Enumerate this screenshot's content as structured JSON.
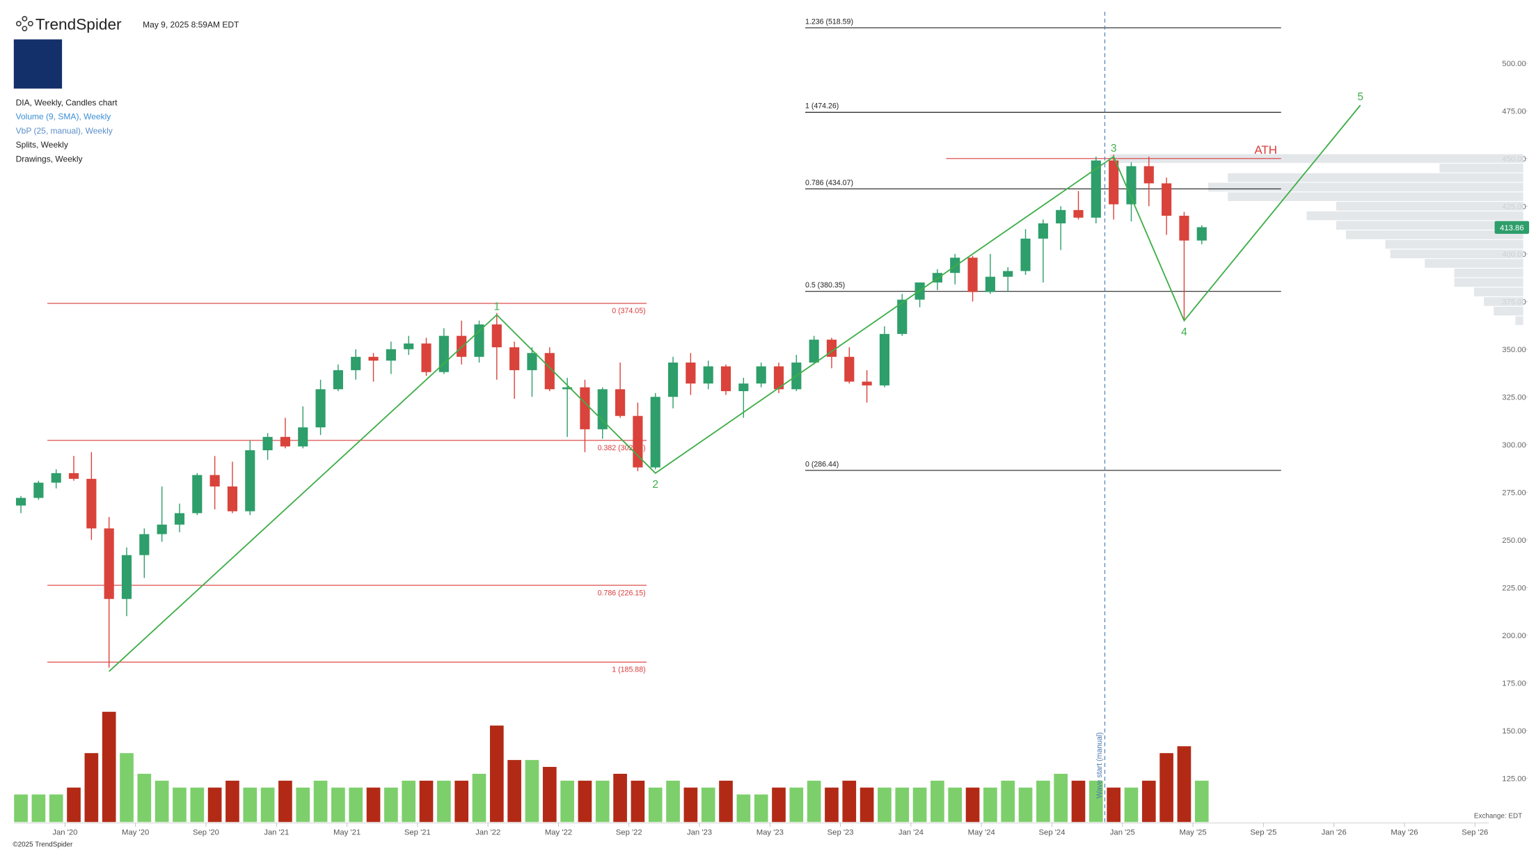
{
  "header": {
    "brand": "TrendSpider",
    "timestamp": "May 9, 2025 8:59AM EDT",
    "legend": [
      {
        "text": "DIA, Weekly, Candles chart",
        "color": "#222222"
      },
      {
        "text": "Volume (9, SMA), Weekly",
        "color": "#3a8fd6"
      },
      {
        "text": "VbP (25, manual), Weekly",
        "color": "#5b8ec9"
      },
      {
        "text": "Splits, Weekly",
        "color": "#222222"
      },
      {
        "text": "Drawings, Weekly",
        "color": "#222222"
      }
    ],
    "exchange": "Exchange: EDT",
    "copyright": "©2025 TrendSpider"
  },
  "chart_data": {
    "type": "candlestick",
    "x": [
      "2019-10",
      "2019-11",
      "2019-12",
      "2020-01",
      "2020-02",
      "2020-03",
      "2020-04",
      "2020-05",
      "2020-06",
      "2020-07",
      "2020-08",
      "2020-09",
      "2020-10",
      "2020-11",
      "2020-12",
      "2021-01",
      "2021-02",
      "2021-03",
      "2021-04",
      "2021-05",
      "2021-06",
      "2021-07",
      "2021-08",
      "2021-09",
      "2021-10",
      "2021-11",
      "2021-12",
      "2022-01",
      "2022-02",
      "2022-03",
      "2022-04",
      "2022-05",
      "2022-06",
      "2022-07",
      "2022-08",
      "2022-09",
      "2022-10",
      "2022-11",
      "2022-12",
      "2023-01",
      "2023-02",
      "2023-03",
      "2023-04",
      "2023-05",
      "2023-06",
      "2023-07",
      "2023-08",
      "2023-09",
      "2023-10",
      "2023-11",
      "2023-12",
      "2024-01",
      "2024-02",
      "2024-03",
      "2024-04",
      "2024-05",
      "2024-06",
      "2024-07",
      "2024-08",
      "2024-09",
      "2024-10",
      "2024-11",
      "2024-12",
      "2025-01",
      "2025-02",
      "2025-03",
      "2025-04",
      "2025-05"
    ],
    "open": [
      268,
      272,
      280,
      285,
      282,
      256,
      219,
      242,
      253,
      258,
      264,
      284,
      278,
      265,
      297,
      304,
      299,
      309,
      329,
      339,
      346,
      344,
      350,
      353,
      338,
      357,
      346,
      363,
      351,
      339,
      348,
      329,
      330,
      308,
      329,
      315,
      288,
      325,
      343,
      332,
      341,
      328,
      332,
      341,
      329,
      343,
      355,
      346,
      333,
      331,
      358,
      376,
      385,
      390,
      398,
      380,
      388,
      391,
      408,
      416,
      423,
      419,
      449,
      426,
      446,
      437,
      420,
      407
    ],
    "high": [
      273,
      281,
      287,
      294,
      296,
      262,
      246,
      256,
      278,
      269,
      285,
      294,
      291,
      302,
      306,
      314,
      320,
      334,
      342,
      350,
      348,
      354,
      357,
      356,
      361,
      365,
      365,
      369,
      354,
      351,
      351,
      335,
      334,
      330,
      343,
      322,
      327,
      346,
      348,
      344,
      342,
      335,
      343,
      343,
      347,
      357,
      356,
      351,
      339,
      362,
      379,
      385,
      392,
      400,
      399,
      400,
      393,
      413,
      418,
      425,
      433,
      451,
      452,
      448,
      451,
      440,
      422,
      415
    ],
    "low": [
      264,
      271,
      277,
      281,
      250,
      183,
      210,
      230,
      249,
      254,
      263,
      266,
      264,
      263,
      292,
      298,
      298,
      305,
      328,
      334,
      333,
      337,
      347,
      336,
      337,
      342,
      343,
      334,
      324,
      325,
      328,
      304,
      296,
      303,
      314,
      286,
      287,
      319,
      326,
      329,
      326,
      314,
      330,
      327,
      328,
      342,
      340,
      332,
      322,
      330,
      357,
      372,
      381,
      384,
      375,
      379,
      380,
      389,
      385,
      402,
      418,
      416,
      418,
      417,
      425,
      410,
      365,
      405
    ],
    "close": [
      272,
      280,
      285,
      282,
      256,
      219,
      242,
      253,
      258,
      264,
      284,
      278,
      265,
      297,
      304,
      299,
      309,
      329,
      339,
      346,
      344,
      350,
      353,
      338,
      357,
      346,
      363,
      351,
      339,
      348,
      329,
      330,
      308,
      329,
      315,
      288,
      325,
      343,
      332,
      341,
      328,
      332,
      341,
      329,
      343,
      355,
      346,
      333,
      331,
      358,
      376,
      385,
      390,
      398,
      380,
      388,
      391,
      408,
      416,
      423,
      419,
      449,
      426,
      446,
      437,
      420,
      407,
      414
    ],
    "volume": [
      4,
      4,
      4,
      5,
      10,
      16,
      10,
      7,
      6,
      5,
      5,
      5,
      6,
      5,
      5,
      6,
      5,
      6,
      5,
      5,
      5,
      5,
      6,
      6,
      6,
      6,
      7,
      14,
      9,
      9,
      8,
      6,
      6,
      6,
      7,
      6,
      5,
      6,
      5,
      5,
      6,
      4,
      4,
      5,
      5,
      6,
      5,
      6,
      5,
      5,
      5,
      5,
      6,
      5,
      5,
      5,
      6,
      5,
      6,
      7,
      6,
      6,
      5,
      5,
      6,
      10,
      11,
      6
    ],
    "up_color": "#2e9e6b",
    "down_color": "#d9433b",
    "volume_up_color": "#7dcf6c",
    "volume_down_color": "#b22a16",
    "vlim": [
      0,
      20
    ],
    "ylim": [
      102,
      528
    ],
    "yticks": [
      {
        "value": 125,
        "label": "125.00"
      },
      {
        "value": 150,
        "label": "150.00"
      },
      {
        "value": 175,
        "label": "175.00"
      },
      {
        "value": 200,
        "label": "200.00"
      },
      {
        "value": 225,
        "label": "225.00"
      },
      {
        "value": 250,
        "label": "250.00"
      },
      {
        "value": 275,
        "label": "275.00"
      },
      {
        "value": 300,
        "label": "300.00"
      },
      {
        "value": 325,
        "label": "325.00"
      },
      {
        "value": 350,
        "label": "350.00"
      },
      {
        "value": 375,
        "label": "375.00"
      },
      {
        "value": 400,
        "label": "400.00"
      },
      {
        "value": 425,
        "label": "425.00"
      },
      {
        "value": 450,
        "label": "450.00"
      },
      {
        "value": 475,
        "label": "475.00"
      },
      {
        "value": 500,
        "label": "500.00"
      }
    ],
    "xticks": [
      {
        "value": "2020-01",
        "label": "Jan '20"
      },
      {
        "value": "2020-05",
        "label": "May '20"
      },
      {
        "value": "2020-09",
        "label": "Sep '20"
      },
      {
        "value": "2021-01",
        "label": "Jan '21"
      },
      {
        "value": "2021-05",
        "label": "May '21"
      },
      {
        "value": "2021-09",
        "label": "Sep '21"
      },
      {
        "value": "2022-01",
        "label": "Jan '22"
      },
      {
        "value": "2022-05",
        "label": "May '22"
      },
      {
        "value": "2022-09",
        "label": "Sep '22"
      },
      {
        "value": "2023-01",
        "label": "Jan '23"
      },
      {
        "value": "2023-05",
        "label": "May '23"
      },
      {
        "value": "2023-09",
        "label": "Sep '23"
      },
      {
        "value": "2024-01",
        "label": "Jan '24"
      },
      {
        "value": "2024-05",
        "label": "May '24"
      },
      {
        "value": "2024-09",
        "label": "Sep '24"
      },
      {
        "value": "2025-01",
        "label": "Jan '25"
      },
      {
        "value": "2025-05",
        "label": "May '25"
      },
      {
        "value": "2025-09",
        "label": "Sep '25"
      },
      {
        "value": "2026-01",
        "label": "Jan '26"
      },
      {
        "value": "2026-05",
        "label": "May '26"
      },
      {
        "value": "2026-09",
        "label": "Sep '26"
      }
    ],
    "last_price": {
      "value": 413.86,
      "label": "413.86",
      "color": "#2e9e6b"
    },
    "volume_profile": {
      "color": "#dfe3e6",
      "levels": [
        365,
        370,
        375,
        380,
        385,
        390,
        395,
        400,
        405,
        410,
        415,
        420,
        425,
        430,
        435,
        440,
        445,
        450
      ],
      "values": [
        8,
        30,
        40,
        50,
        70,
        70,
        100,
        135,
        140,
        180,
        190,
        220,
        190,
        300,
        320,
        300,
        85,
        420
      ]
    },
    "wave": {
      "color": "#3fae49",
      "x": [
        "2020-03",
        "2022-01",
        "2022-10",
        "2024-12",
        "2025-04",
        "2026-02"
      ],
      "values": [
        181,
        368,
        285,
        451,
        365,
        478
      ],
      "labels": [
        null,
        "1",
        "2",
        "3",
        "4",
        "5"
      ]
    },
    "fib_left": {
      "color": "#d93b3b",
      "x": [
        "2019-12",
        "2022-10"
      ],
      "levels": [
        {
          "value": 374.05,
          "label": "0 (374.05)"
        },
        {
          "value": 302.17,
          "label": "0.382 (302.17)"
        },
        {
          "value": 226.15,
          "label": "0.786 (226.15)"
        },
        {
          "value": 185.88,
          "label": "1 (185.88)"
        }
      ]
    },
    "fib_right": {
      "color": "#222222",
      "x": [
        "2023-07",
        "2025-10"
      ],
      "levels": [
        {
          "value": 518.59,
          "label": "1.236 (518.59)"
        },
        {
          "value": 474.26,
          "label": "1 (474.26)"
        },
        {
          "value": 434.07,
          "label": "0.786 (434.07)"
        },
        {
          "value": 380.35,
          "label": "0.5 (380.35)"
        },
        {
          "value": 286.44,
          "label": "0 (286.44)"
        }
      ]
    },
    "ath": {
      "label": "ATH",
      "value": 450,
      "x": [
        "2024-03",
        "2025-10"
      ],
      "color": "#d93b3b"
    },
    "marker": {
      "label": "Wave start (manual)",
      "x": "2024-12",
      "color": "#4a7ab0"
    }
  }
}
